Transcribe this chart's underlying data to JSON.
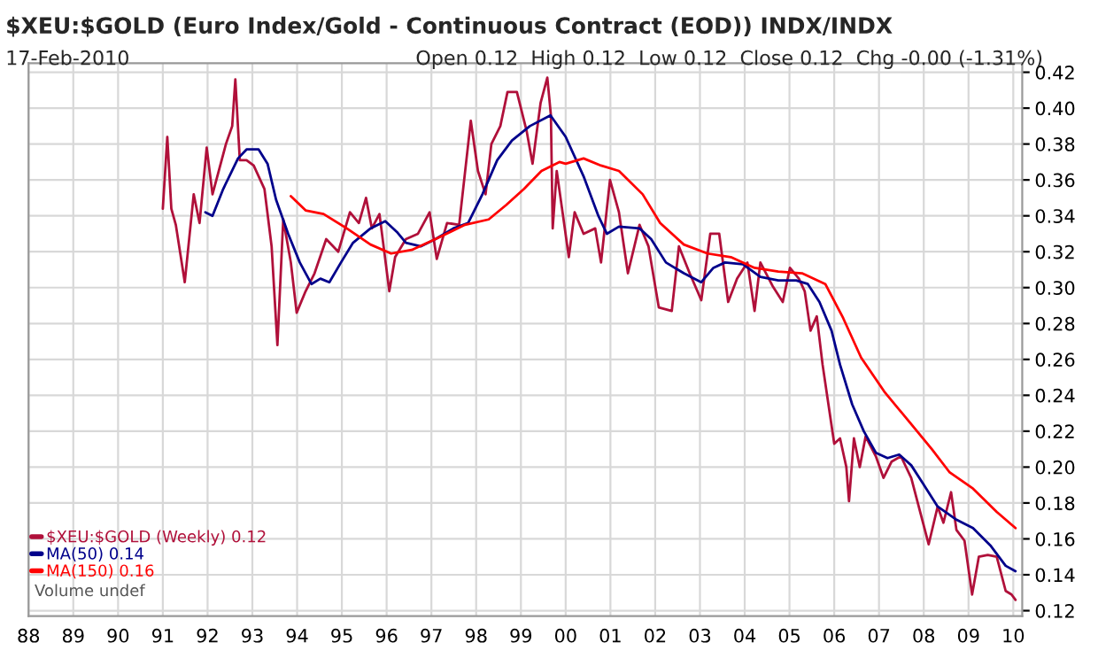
{
  "chart_data": {
    "type": "line",
    "title": "$XEU:$GOLD (Euro Index/Gold - Continuous Contract (EOD)) INDX/INDX",
    "subtitle": "17-Feb-2010",
    "annotations": [
      "Open 0.12  High 0.12  Low 0.12  Close 0.12  Chg -0.00 (-1.31%)",
      "Volume undef"
    ],
    "xlim": [
      1988,
      2010.2
    ],
    "ylim": [
      0.117,
      0.425
    ],
    "xticks": [
      {
        "value": 1988,
        "label": "88"
      },
      {
        "value": 1989,
        "label": "89"
      },
      {
        "value": 1990,
        "label": "90"
      },
      {
        "value": 1991,
        "label": "91"
      },
      {
        "value": 1992,
        "label": "92"
      },
      {
        "value": 1993,
        "label": "93"
      },
      {
        "value": 1994,
        "label": "94"
      },
      {
        "value": 1995,
        "label": "95"
      },
      {
        "value": 1996,
        "label": "96"
      },
      {
        "value": 1997,
        "label": "97"
      },
      {
        "value": 1998,
        "label": "98"
      },
      {
        "value": 1999,
        "label": "99"
      },
      {
        "value": 2000,
        "label": "00"
      },
      {
        "value": 2001,
        "label": "01"
      },
      {
        "value": 2002,
        "label": "02"
      },
      {
        "value": 2003,
        "label": "03"
      },
      {
        "value": 2004,
        "label": "04"
      },
      {
        "value": 2005,
        "label": "05"
      },
      {
        "value": 2006,
        "label": "06"
      },
      {
        "value": 2007,
        "label": "07"
      },
      {
        "value": 2008,
        "label": "08"
      },
      {
        "value": 2009,
        "label": "09"
      },
      {
        "value": 2010,
        "label": "10"
      }
    ],
    "yticks": [
      0.12,
      0.14,
      0.16,
      0.18,
      {
        "value": 0.2,
        "label": "0.20"
      },
      0.22,
      0.24,
      0.26,
      0.28,
      {
        "value": 0.3,
        "label": "0.30"
      },
      0.32,
      0.34,
      0.36,
      0.38,
      {
        "value": 0.4,
        "label": "0.40"
      },
      0.42
    ],
    "grid": true,
    "legend": "bottom left",
    "series": [
      {
        "name": "$XEU:$GOLD (Weekly) 0.12",
        "color": "#b0103a",
        "x": [
          1991.0,
          1991.1,
          1991.19,
          1991.29,
          1991.49,
          1991.69,
          1991.82,
          1991.98,
          1992.11,
          1992.41,
          1992.55,
          1992.62,
          1992.72,
          1992.87,
          1993.03,
          1993.27,
          1993.43,
          1993.56,
          1993.69,
          1993.86,
          1993.99,
          1994.19,
          1994.39,
          1994.65,
          1994.92,
          1995.18,
          1995.38,
          1995.54,
          1995.67,
          1995.84,
          1996.06,
          1996.19,
          1996.43,
          1996.7,
          1996.96,
          1997.12,
          1997.35,
          1997.62,
          1997.88,
          1998.04,
          1998.21,
          1998.34,
          1998.54,
          1998.7,
          1998.91,
          1999.13,
          1999.26,
          1999.44,
          1999.59,
          1999.67,
          1999.71,
          1999.8,
          1999.93,
          2000.07,
          2000.2,
          2000.4,
          2000.66,
          2000.79,
          2000.99,
          2001.19,
          2001.39,
          2001.65,
          2001.85,
          2002.08,
          2002.37,
          2002.53,
          2002.77,
          2003.03,
          2003.23,
          2003.43,
          2003.63,
          2003.83,
          2004.06,
          2004.22,
          2004.35,
          2004.62,
          2004.85,
          2005.01,
          2005.21,
          2005.34,
          2005.47,
          2005.61,
          2005.74,
          2005.87,
          2006.0,
          2006.13,
          2006.27,
          2006.33,
          2006.44,
          2006.57,
          2006.7,
          2006.93,
          2007.1,
          2007.28,
          2007.49,
          2007.72,
          2007.92,
          2008.11,
          2008.31,
          2008.44,
          2008.61,
          2008.73,
          2008.91,
          2009.08,
          2009.23,
          2009.43,
          2009.63,
          2009.83,
          2009.96,
          2010.05
        ],
        "values": [
          0.344,
          0.384,
          0.344,
          0.335,
          0.303,
          0.352,
          0.336,
          0.378,
          0.352,
          0.38,
          0.39,
          0.416,
          0.371,
          0.371,
          0.368,
          0.355,
          0.323,
          0.268,
          0.338,
          0.314,
          0.286,
          0.298,
          0.308,
          0.327,
          0.32,
          0.342,
          0.336,
          0.35,
          0.333,
          0.341,
          0.298,
          0.317,
          0.327,
          0.33,
          0.342,
          0.316,
          0.336,
          0.335,
          0.393,
          0.365,
          0.352,
          0.38,
          0.39,
          0.409,
          0.409,
          0.387,
          0.369,
          0.403,
          0.417,
          0.396,
          0.333,
          0.365,
          0.342,
          0.317,
          0.342,
          0.33,
          0.333,
          0.314,
          0.36,
          0.342,
          0.308,
          0.335,
          0.323,
          0.289,
          0.287,
          0.323,
          0.308,
          0.293,
          0.33,
          0.33,
          0.292,
          0.305,
          0.314,
          0.287,
          0.314,
          0.301,
          0.292,
          0.311,
          0.305,
          0.298,
          0.276,
          0.284,
          0.257,
          0.235,
          0.213,
          0.216,
          0.2,
          0.181,
          0.216,
          0.2,
          0.217,
          0.206,
          0.194,
          0.203,
          0.206,
          0.194,
          0.175,
          0.157,
          0.178,
          0.169,
          0.186,
          0.165,
          0.159,
          0.129,
          0.15,
          0.151,
          0.15,
          0.131,
          0.129,
          0.126
        ]
      },
      {
        "name": "MA(50) 0.14",
        "color": "#00008b",
        "x": [
          1991.95,
          1992.11,
          1992.35,
          1992.68,
          1992.87,
          1993.14,
          1993.34,
          1993.53,
          1993.8,
          1994.06,
          1994.32,
          1994.52,
          1994.72,
          1994.98,
          1995.25,
          1995.64,
          1995.97,
          1996.23,
          1996.43,
          1996.76,
          1997.09,
          1997.49,
          1997.82,
          1998.14,
          1998.47,
          1998.8,
          1999.2,
          1999.66,
          2000.0,
          2000.4,
          2000.73,
          2000.92,
          2001.19,
          2001.65,
          2001.91,
          2002.24,
          2002.64,
          2003.03,
          2003.3,
          2003.56,
          2003.96,
          2004.35,
          2004.75,
          2005.15,
          2005.41,
          2005.67,
          2005.94,
          2006.13,
          2006.4,
          2006.66,
          2006.93,
          2007.19,
          2007.45,
          2007.72,
          2007.98,
          2008.31,
          2008.71,
          2009.1,
          2009.5,
          2009.83,
          2010.05
        ],
        "values": [
          0.342,
          0.34,
          0.355,
          0.372,
          0.377,
          0.377,
          0.369,
          0.349,
          0.33,
          0.314,
          0.302,
          0.305,
          0.303,
          0.314,
          0.325,
          0.333,
          0.337,
          0.331,
          0.325,
          0.323,
          0.327,
          0.333,
          0.336,
          0.352,
          0.371,
          0.382,
          0.39,
          0.396,
          0.384,
          0.362,
          0.34,
          0.33,
          0.334,
          0.333,
          0.327,
          0.314,
          0.308,
          0.303,
          0.311,
          0.314,
          0.313,
          0.306,
          0.304,
          0.304,
          0.302,
          0.292,
          0.276,
          0.257,
          0.235,
          0.22,
          0.208,
          0.205,
          0.207,
          0.201,
          0.191,
          0.178,
          0.171,
          0.166,
          0.156,
          0.145,
          0.142
        ]
      },
      {
        "name": "MA(150) 0.16",
        "color": "#ff0000",
        "x": [
          1993.86,
          1994.19,
          1994.59,
          1995.11,
          1995.64,
          1996.1,
          1996.56,
          1997.09,
          1997.75,
          1998.28,
          1998.67,
          1999.07,
          1999.46,
          1999.86,
          2000.0,
          2000.4,
          2000.79,
          2001.19,
          2001.72,
          2002.11,
          2002.64,
          2003.17,
          2003.69,
          2004.22,
          2004.75,
          2005.28,
          2005.8,
          2006.2,
          2006.6,
          2007.12,
          2007.65,
          2008.18,
          2008.58,
          2009.1,
          2009.63,
          2010.05
        ],
        "values": [
          0.351,
          0.343,
          0.341,
          0.333,
          0.324,
          0.319,
          0.321,
          0.327,
          0.335,
          0.338,
          0.346,
          0.355,
          0.365,
          0.37,
          0.369,
          0.372,
          0.368,
          0.365,
          0.352,
          0.336,
          0.324,
          0.319,
          0.317,
          0.311,
          0.309,
          0.308,
          0.302,
          0.283,
          0.261,
          0.242,
          0.226,
          0.21,
          0.197,
          0.188,
          0.175,
          0.166
        ]
      }
    ]
  }
}
